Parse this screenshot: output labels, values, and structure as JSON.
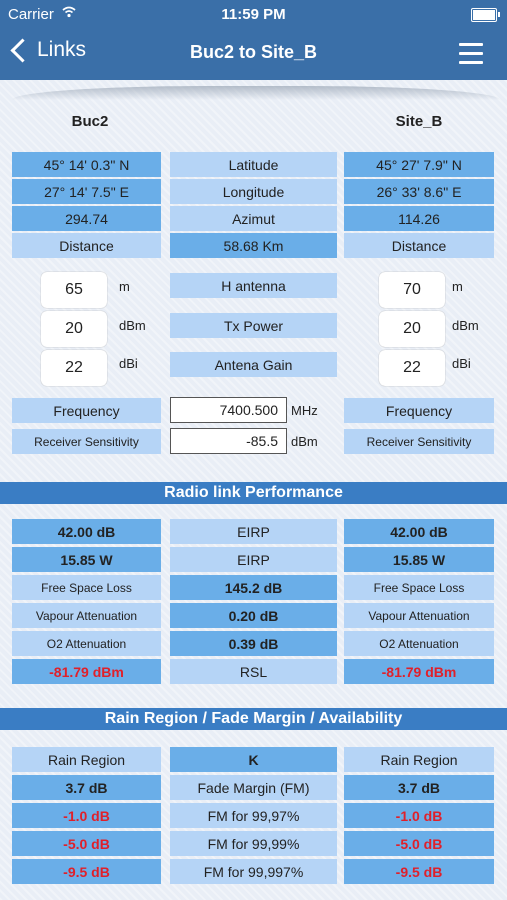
{
  "status": {
    "carrier": "Carrier",
    "time": "11:59 PM"
  },
  "nav": {
    "back_label": "Links",
    "title": "Buc2 to Site_B"
  },
  "sites": {
    "left": "Buc2",
    "right": "Site_B"
  },
  "coords": {
    "left": [
      "45° 14' 0.3\" N",
      "27° 14' 7.5\" E",
      "294.74",
      "Distance"
    ],
    "mid": [
      "Latitude",
      "Longitude",
      "Azimut",
      "58.68 Km"
    ],
    "right": [
      "45° 27' 7.9\" N",
      "26° 33' 8.6\" E",
      "114.26",
      "Distance"
    ]
  },
  "antenna": {
    "left_values": [
      "65",
      "20",
      "22"
    ],
    "units": [
      "m",
      "dBm",
      "dBi"
    ],
    "labels": [
      "H antenna",
      "Tx Power",
      "Antena Gain"
    ],
    "right_values": [
      "70",
      "20",
      "22"
    ]
  },
  "freq": {
    "label": "Frequency",
    "value": "7400.500",
    "unit": "MHz",
    "sens_label": "Receiver Sensitivity",
    "sens_value": "-85.5",
    "sens_unit": "dBm"
  },
  "perf": {
    "title": "Radio link Performance",
    "left": [
      "42.00 dB",
      "15.85 W",
      "Free Space Loss",
      "Vapour Attenuation",
      "O2 Attenuation",
      "-81.79 dBm"
    ],
    "mid": [
      "EIRP",
      "EIRP",
      "145.2 dB",
      "0.20 dB",
      "0.39 dB",
      "RSL"
    ],
    "right": [
      "42.00 dB",
      "15.85 W",
      "Free Space Loss",
      "Vapour Attenuation",
      "O2 Attenuation",
      "-81.79 dBm"
    ]
  },
  "rain": {
    "title": "Rain Region / Fade Margin / Availability",
    "left": [
      "Rain Region",
      "3.7 dB",
      "-1.0 dB",
      "-5.0 dB",
      "-9.5 dB"
    ],
    "mid": [
      "K",
      "Fade Margin (FM)",
      "FM for 99,97%",
      "FM for 99,99%",
      "FM for 99,997%"
    ],
    "right": [
      "Rain Region",
      "3.7 dB",
      "-1.0 dB",
      "-5.0 dB",
      "-9.5 dB"
    ]
  }
}
